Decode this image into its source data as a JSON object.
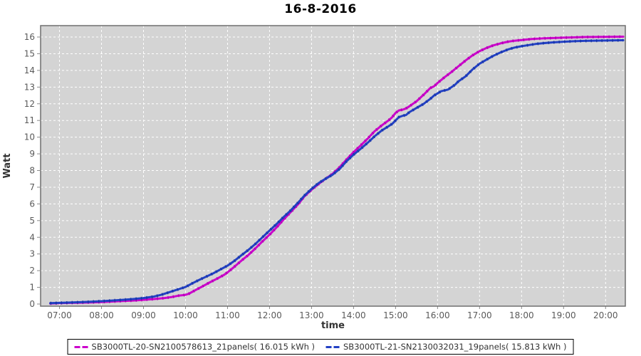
{
  "chart_data": {
    "type": "line",
    "title": "16-8-2016",
    "xlabel": "time",
    "ylabel": "Watt",
    "x_tick_labels": [
      "07:00",
      "08:00",
      "09:00",
      "10:00",
      "11:00",
      "12:00",
      "13:00",
      "14:00",
      "15:00",
      "16:00",
      "17:00",
      "18:00",
      "19:00",
      "20:00"
    ],
    "x_tick_hours": [
      7,
      8,
      9,
      10,
      11,
      12,
      13,
      14,
      15,
      16,
      17,
      18,
      19,
      20
    ],
    "y_ticks": [
      0,
      1,
      2,
      3,
      4,
      5,
      6,
      7,
      8,
      9,
      10,
      11,
      12,
      13,
      14,
      15,
      16
    ],
    "xlim_hours": [
      6.55,
      20.47
    ],
    "ylim": [
      0,
      16.6
    ],
    "grid": {
      "line_color": "#ffffff",
      "line_style": "dashed",
      "plot_background": "#d4d4d4",
      "border_color": "#6e6e6e"
    },
    "legend_position": "bottom-center",
    "series": [
      {
        "name": "SB3000TL-20-SN2100578613_21panels( 16.015 kWh )",
        "color": "#cc00cc",
        "marker_color": "#a800a8",
        "total_kwh": "16.015",
        "points": [
          [
            6.78,
            0.03
          ],
          [
            7.0,
            0.05
          ],
          [
            7.25,
            0.07
          ],
          [
            7.5,
            0.08
          ],
          [
            7.75,
            0.1
          ],
          [
            8.0,
            0.12
          ],
          [
            8.25,
            0.15
          ],
          [
            8.5,
            0.18
          ],
          [
            8.75,
            0.21
          ],
          [
            9.0,
            0.25
          ],
          [
            9.25,
            0.3
          ],
          [
            9.5,
            0.36
          ],
          [
            9.67,
            0.42
          ],
          [
            9.83,
            0.5
          ],
          [
            10.0,
            0.55
          ],
          [
            10.08,
            0.62
          ],
          [
            10.25,
            0.85
          ],
          [
            10.42,
            1.08
          ],
          [
            10.58,
            1.3
          ],
          [
            10.75,
            1.52
          ],
          [
            10.92,
            1.75
          ],
          [
            11.0,
            1.9
          ],
          [
            11.17,
            2.25
          ],
          [
            11.33,
            2.6
          ],
          [
            11.5,
            2.95
          ],
          [
            11.67,
            3.35
          ],
          [
            11.83,
            3.75
          ],
          [
            12.0,
            4.15
          ],
          [
            12.17,
            4.6
          ],
          [
            12.33,
            5.05
          ],
          [
            12.5,
            5.5
          ],
          [
            12.67,
            5.95
          ],
          [
            12.83,
            6.45
          ],
          [
            13.0,
            6.85
          ],
          [
            13.17,
            7.2
          ],
          [
            13.33,
            7.5
          ],
          [
            13.5,
            7.8
          ],
          [
            13.67,
            8.2
          ],
          [
            13.83,
            8.65
          ],
          [
            14.0,
            9.1
          ],
          [
            14.17,
            9.5
          ],
          [
            14.33,
            9.9
          ],
          [
            14.5,
            10.35
          ],
          [
            14.67,
            10.7
          ],
          [
            14.83,
            11.0
          ],
          [
            14.92,
            11.2
          ],
          [
            15.0,
            11.45
          ],
          [
            15.08,
            11.6
          ],
          [
            15.17,
            11.65
          ],
          [
            15.25,
            11.72
          ],
          [
            15.33,
            11.85
          ],
          [
            15.5,
            12.15
          ],
          [
            15.67,
            12.55
          ],
          [
            15.83,
            12.95
          ],
          [
            15.92,
            13.05
          ],
          [
            16.0,
            13.25
          ],
          [
            16.17,
            13.6
          ],
          [
            16.33,
            13.9
          ],
          [
            16.5,
            14.25
          ],
          [
            16.67,
            14.6
          ],
          [
            16.83,
            14.9
          ],
          [
            17.0,
            15.15
          ],
          [
            17.17,
            15.35
          ],
          [
            17.33,
            15.5
          ],
          [
            17.5,
            15.62
          ],
          [
            17.67,
            15.72
          ],
          [
            17.83,
            15.78
          ],
          [
            18.0,
            15.82
          ],
          [
            18.25,
            15.88
          ],
          [
            18.5,
            15.92
          ],
          [
            18.75,
            15.94
          ],
          [
            19.0,
            15.96
          ],
          [
            19.25,
            15.98
          ],
          [
            19.5,
            16.0
          ],
          [
            20.0,
            16.01
          ],
          [
            20.42,
            16.02
          ]
        ]
      },
      {
        "name": "SB3000TL-21-SN2130032031_19panels( 15.813 kWh )",
        "color": "#2240c4",
        "marker_color": "#16329b",
        "total_kwh": "15.813",
        "points": [
          [
            6.78,
            0.05
          ],
          [
            7.0,
            0.07
          ],
          [
            7.25,
            0.09
          ],
          [
            7.5,
            0.11
          ],
          [
            7.75,
            0.14
          ],
          [
            8.0,
            0.17
          ],
          [
            8.25,
            0.21
          ],
          [
            8.5,
            0.25
          ],
          [
            8.75,
            0.3
          ],
          [
            9.0,
            0.36
          ],
          [
            9.25,
            0.45
          ],
          [
            9.42,
            0.55
          ],
          [
            9.58,
            0.68
          ],
          [
            9.75,
            0.82
          ],
          [
            10.0,
            1.02
          ],
          [
            10.17,
            1.25
          ],
          [
            10.33,
            1.45
          ],
          [
            10.5,
            1.65
          ],
          [
            10.67,
            1.85
          ],
          [
            10.83,
            2.07
          ],
          [
            11.0,
            2.3
          ],
          [
            11.17,
            2.6
          ],
          [
            11.33,
            2.92
          ],
          [
            11.5,
            3.25
          ],
          [
            11.67,
            3.62
          ],
          [
            11.83,
            4.0
          ],
          [
            12.0,
            4.4
          ],
          [
            12.17,
            4.8
          ],
          [
            12.33,
            5.2
          ],
          [
            12.5,
            5.6
          ],
          [
            12.67,
            6.05
          ],
          [
            12.83,
            6.5
          ],
          [
            13.0,
            6.9
          ],
          [
            13.17,
            7.25
          ],
          [
            13.33,
            7.5
          ],
          [
            13.5,
            7.75
          ],
          [
            13.67,
            8.1
          ],
          [
            13.83,
            8.55
          ],
          [
            14.0,
            8.95
          ],
          [
            14.17,
            9.3
          ],
          [
            14.33,
            9.65
          ],
          [
            14.5,
            10.05
          ],
          [
            14.67,
            10.4
          ],
          [
            14.83,
            10.65
          ],
          [
            14.92,
            10.8
          ],
          [
            15.0,
            11.0
          ],
          [
            15.08,
            11.2
          ],
          [
            15.17,
            11.28
          ],
          [
            15.25,
            11.33
          ],
          [
            15.33,
            11.5
          ],
          [
            15.5,
            11.75
          ],
          [
            15.67,
            12.0
          ],
          [
            15.83,
            12.3
          ],
          [
            15.92,
            12.5
          ],
          [
            16.0,
            12.62
          ],
          [
            16.08,
            12.75
          ],
          [
            16.25,
            12.85
          ],
          [
            16.42,
            13.15
          ],
          [
            16.5,
            13.35
          ],
          [
            16.67,
            13.65
          ],
          [
            16.83,
            14.05
          ],
          [
            17.0,
            14.4
          ],
          [
            17.17,
            14.65
          ],
          [
            17.33,
            14.88
          ],
          [
            17.5,
            15.08
          ],
          [
            17.67,
            15.25
          ],
          [
            17.83,
            15.37
          ],
          [
            18.0,
            15.45
          ],
          [
            18.17,
            15.52
          ],
          [
            18.33,
            15.58
          ],
          [
            18.5,
            15.63
          ],
          [
            18.75,
            15.68
          ],
          [
            19.0,
            15.72
          ],
          [
            19.25,
            15.75
          ],
          [
            19.5,
            15.77
          ],
          [
            20.0,
            15.79
          ],
          [
            20.42,
            15.81
          ]
        ]
      }
    ]
  }
}
